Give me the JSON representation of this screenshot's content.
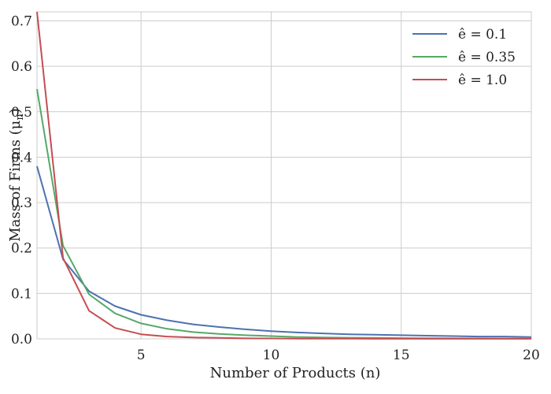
{
  "chart_data": {
    "type": "line",
    "title": "",
    "xlabel": "Number of Products (n)",
    "ylabel": "Mass of Firms (μ",
    "ylabel_subscript": "n",
    "ylabel_close": ")",
    "xlim": [
      1,
      20
    ],
    "ylim": [
      0,
      0.72
    ],
    "xticks": [
      5,
      10,
      15,
      20
    ],
    "yticks": [
      0.0,
      0.1,
      0.2,
      0.3,
      0.4,
      0.5,
      0.6,
      0.7
    ],
    "ytick_labels": [
      "0.0",
      "0.1",
      "0.2",
      "0.3",
      "0.4",
      "0.5",
      "0.6",
      "0.7"
    ],
    "grid": true,
    "legend_position": "top-right",
    "x": [
      1,
      2,
      3,
      4,
      5,
      6,
      7,
      8,
      9,
      10,
      11,
      12,
      13,
      14,
      15,
      16,
      17,
      18,
      19,
      20
    ],
    "series": [
      {
        "name": "ê = 0.1",
        "color": "#4c72b0",
        "values": [
          0.38,
          0.175,
          0.105,
          0.072,
          0.053,
          0.041,
          0.032,
          0.026,
          0.021,
          0.017,
          0.014,
          0.012,
          0.01,
          0.009,
          0.008,
          0.007,
          0.006,
          0.005,
          0.005,
          0.004
        ]
      },
      {
        "name": "ê = 0.35",
        "color": "#55a868",
        "values": [
          0.55,
          0.205,
          0.098,
          0.056,
          0.034,
          0.022,
          0.015,
          0.011,
          0.008,
          0.006,
          0.004,
          0.003,
          0.0025,
          0.002,
          0.0015,
          0.0012,
          0.001,
          0.0008,
          0.0007,
          0.0006
        ]
      },
      {
        "name": "ê = 1.0",
        "color": "#c44e52",
        "values": [
          0.72,
          0.178,
          0.062,
          0.024,
          0.01,
          0.005,
          0.003,
          0.002,
          0.001,
          0.0008,
          0.0005,
          0.0004,
          0.0003,
          0.0002,
          0.0002,
          0.0001,
          0.0001,
          0.0001,
          0.0001,
          0.0001
        ]
      }
    ]
  }
}
